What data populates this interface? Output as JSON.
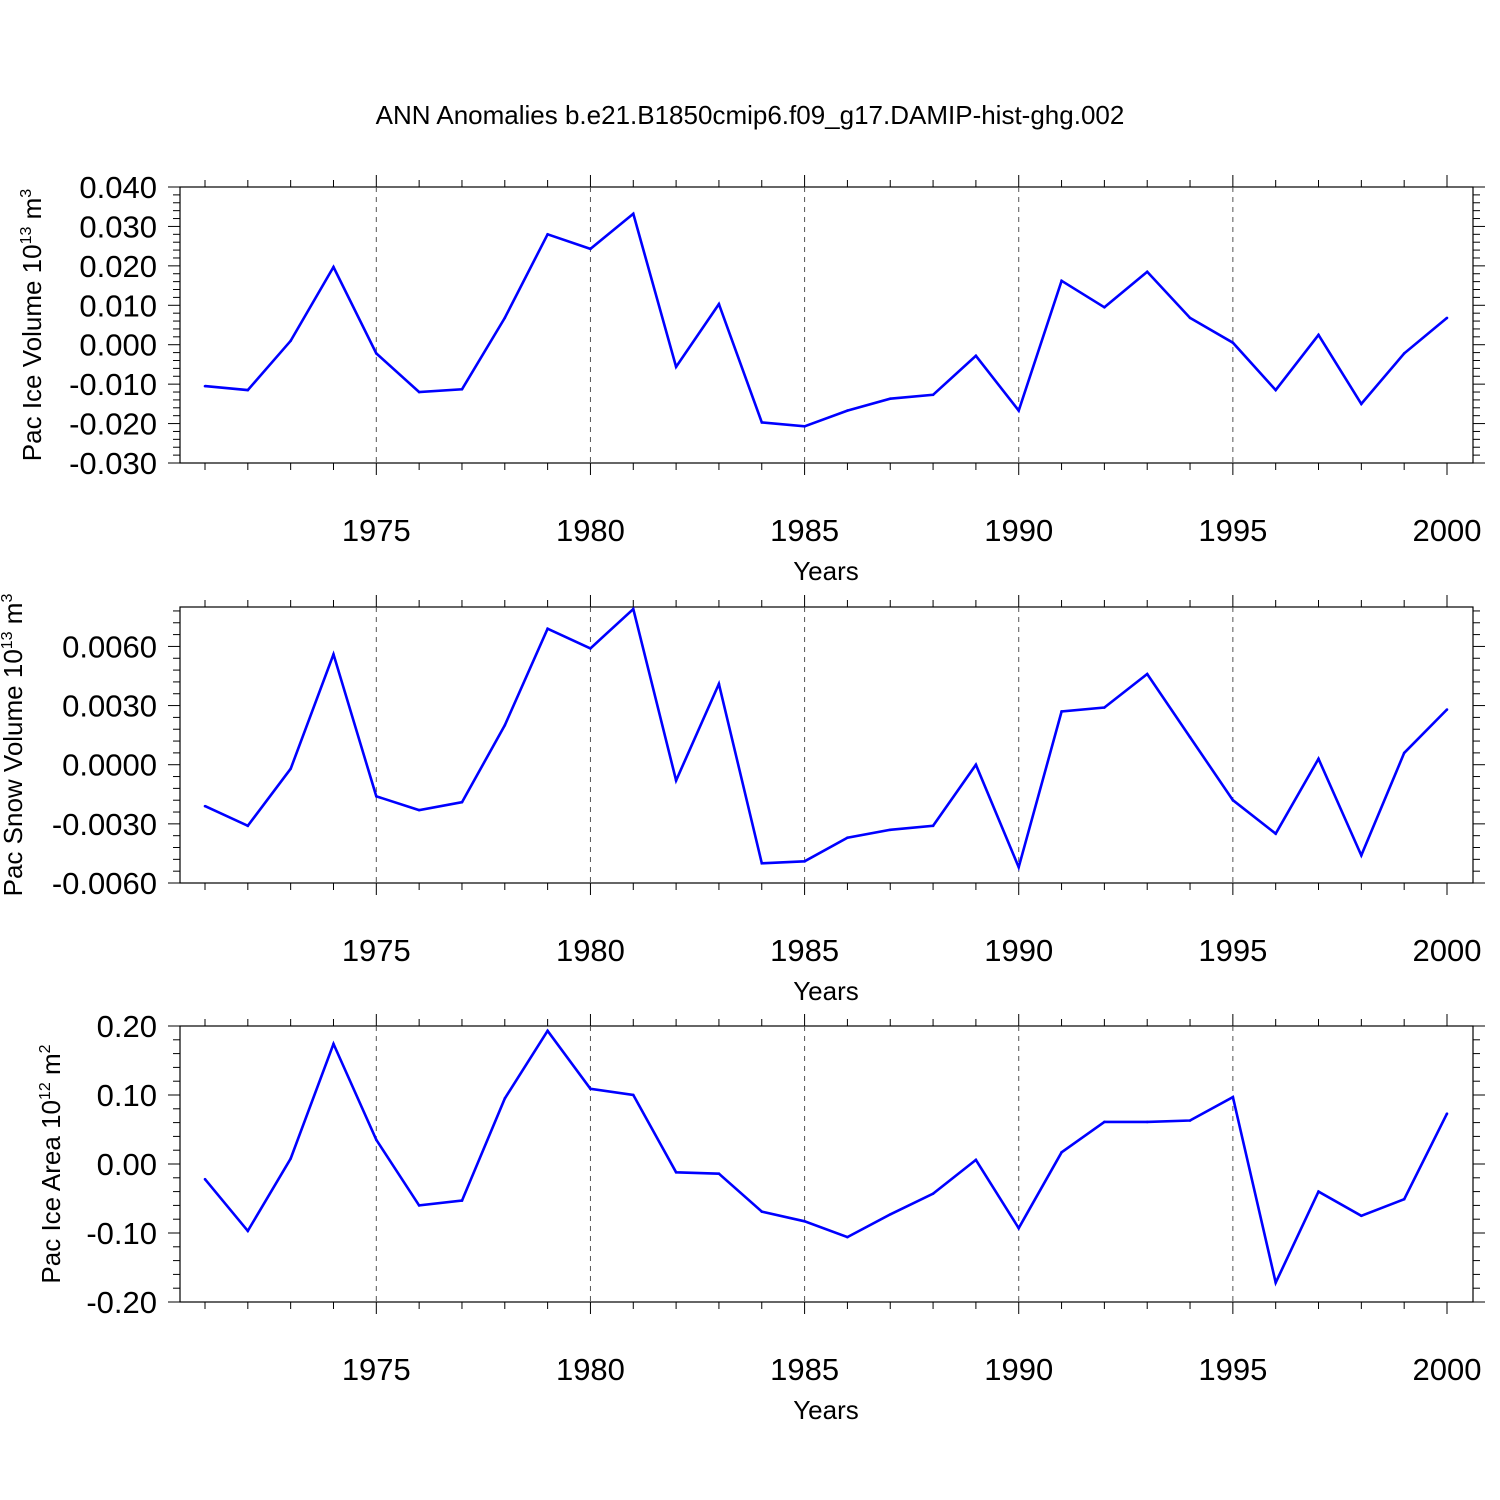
{
  "title": "ANN Anomalies b.e21.B1850cmip6.f09_g17.DAMIP-hist-ghg.002",
  "line_color": "#0000ff",
  "chart_data": [
    {
      "type": "line",
      "xlabel": "Years",
      "ylabel": "Pac Ice Volume 10",
      "ylabel_sup": "13",
      "ylabel_unit": "m",
      "ylabel_unit_sup": "3",
      "xlim": [
        1971,
        2000
      ],
      "ylim": [
        -0.03,
        0.04
      ],
      "xticks": [
        1975,
        1980,
        1985,
        1990,
        1995,
        2000
      ],
      "xtick_labels": [
        "1975",
        "1980",
        "1985",
        "1990",
        "1995",
        "2000"
      ],
      "yticks": [
        -0.03,
        -0.02,
        -0.01,
        0.0,
        0.01,
        0.02,
        0.03,
        0.04
      ],
      "ytick_labels": [
        "-0.030",
        "-0.020",
        "-0.010",
        "0.000",
        "0.010",
        "0.020",
        "0.030",
        "0.040"
      ],
      "grid": "dashed vertical at x ticks",
      "x": [
        1971,
        1972,
        1973,
        1974,
        1975,
        1976,
        1977,
        1978,
        1979,
        1980,
        1981,
        1982,
        1983,
        1984,
        1985,
        1986,
        1987,
        1988,
        1989,
        1990,
        1991,
        1992,
        1993,
        1994,
        1995,
        1996,
        1997,
        1998,
        1999,
        2000
      ],
      "values": [
        -0.0105,
        -0.0115,
        0.001,
        0.0197,
        -0.0022,
        -0.012,
        -0.0113,
        0.0068,
        0.028,
        0.0243,
        0.0332,
        -0.0056,
        0.0103,
        -0.0197,
        -0.0207,
        -0.0167,
        -0.0137,
        -0.0127,
        -0.0028,
        -0.0167,
        0.0162,
        0.0095,
        0.0185,
        0.0068,
        0.0005,
        -0.0115,
        0.0025,
        -0.015,
        -0.0022,
        0.0068
      ]
    },
    {
      "type": "line",
      "xlabel": "Years",
      "ylabel": "Pac Snow Volume 10",
      "ylabel_sup": "13",
      "ylabel_unit": "m",
      "ylabel_unit_sup": "3",
      "xlim": [
        1971,
        2000
      ],
      "ylim": [
        -0.006,
        0.008
      ],
      "xticks": [
        1975,
        1980,
        1985,
        1990,
        1995,
        2000
      ],
      "xtick_labels": [
        "1975",
        "1980",
        "1985",
        "1990",
        "1995",
        "2000"
      ],
      "yticks": [
        -0.006,
        -0.003,
        0.0,
        0.003,
        0.006
      ],
      "ytick_labels": [
        "-0.0060",
        "-0.0030",
        "0.0000",
        "0.0030",
        "0.0060"
      ],
      "grid": "dashed vertical at x ticks",
      "x": [
        1971,
        1972,
        1973,
        1974,
        1975,
        1976,
        1977,
        1978,
        1979,
        1980,
        1981,
        1982,
        1983,
        1984,
        1985,
        1986,
        1987,
        1988,
        1989,
        1990,
        1991,
        1992,
        1993,
        1994,
        1995,
        1996,
        1997,
        1998,
        1999,
        2000
      ],
      "values": [
        -0.0021,
        -0.0031,
        -0.0002,
        0.0056,
        -0.0016,
        -0.0023,
        -0.0019,
        0.002,
        0.0069,
        0.0059,
        0.0079,
        -0.0008,
        0.0041,
        -0.005,
        -0.0049,
        -0.0037,
        -0.0033,
        -0.0031,
        0.0,
        -0.0052,
        0.0027,
        0.0029,
        0.0046,
        0.0014,
        -0.0018,
        -0.0035,
        0.0003,
        -0.0046,
        0.0006,
        0.0028
      ]
    },
    {
      "type": "line",
      "xlabel": "Years",
      "ylabel": "Pac Ice Area 10",
      "ylabel_sup": "12",
      "ylabel_unit": "m",
      "ylabel_unit_sup": "2",
      "xlim": [
        1971,
        2000
      ],
      "ylim": [
        -0.2,
        0.2
      ],
      "xticks": [
        1975,
        1980,
        1985,
        1990,
        1995,
        2000
      ],
      "xtick_labels": [
        "1975",
        "1980",
        "1985",
        "1990",
        "1995",
        "2000"
      ],
      "yticks": [
        -0.2,
        -0.1,
        0.0,
        0.1,
        0.2
      ],
      "ytick_labels": [
        "-0.20",
        "-0.10",
        "0.00",
        "0.10",
        "0.20"
      ],
      "grid": "dashed vertical at x ticks",
      "x": [
        1971,
        1972,
        1973,
        1974,
        1975,
        1976,
        1977,
        1978,
        1979,
        1980,
        1981,
        1982,
        1983,
        1984,
        1985,
        1986,
        1987,
        1988,
        1989,
        1990,
        1991,
        1992,
        1993,
        1994,
        1995,
        1996,
        1997,
        1998,
        1999,
        2000
      ],
      "values": [
        -0.022,
        -0.097,
        0.008,
        0.174,
        0.035,
        -0.06,
        -0.053,
        0.095,
        0.193,
        0.109,
        0.1,
        -0.012,
        -0.014,
        -0.069,
        -0.083,
        -0.106,
        -0.073,
        -0.043,
        0.006,
        -0.093,
        0.017,
        0.061,
        0.061,
        0.063,
        0.097,
        -0.172,
        -0.04,
        -0.075,
        -0.051,
        0.073
      ]
    }
  ]
}
